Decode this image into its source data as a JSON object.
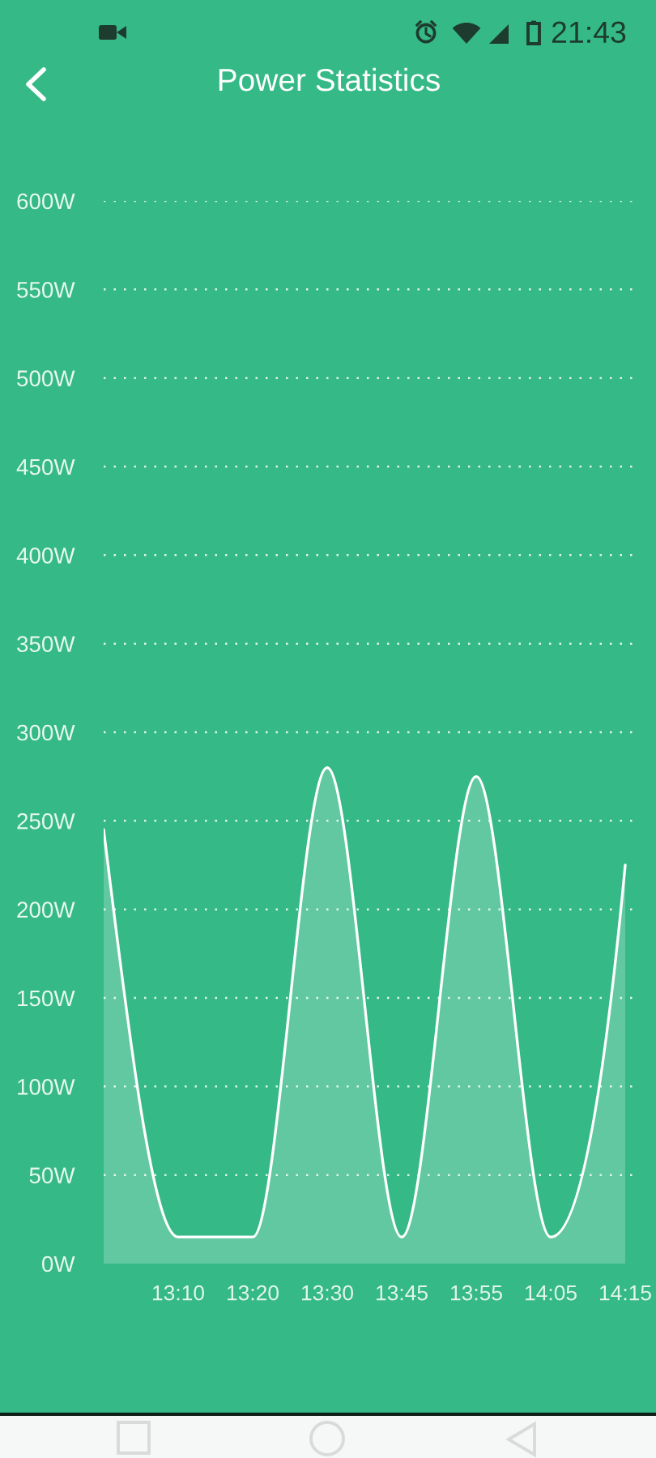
{
  "chart_data": {
    "type": "area",
    "title": "Power Statistics",
    "categories": [
      null,
      "13:10",
      "13:20",
      "13:30",
      "13:45",
      "13:55",
      "14:05",
      "14:15"
    ],
    "values": [
      245,
      15,
      15,
      280,
      15,
      275,
      15,
      225
    ],
    "color": "#ffffff",
    "ylim": [
      0,
      600
    ],
    "yticks": [
      {
        "value": 0,
        "label": "0W"
      },
      {
        "value": 50,
        "label": "50W"
      },
      {
        "value": 100,
        "label": "100W"
      },
      {
        "value": 150,
        "label": "150W"
      },
      {
        "value": 200,
        "label": "200W"
      },
      {
        "value": 250,
        "label": "250W"
      },
      {
        "value": 300,
        "label": "300W"
      },
      {
        "value": 350,
        "label": "350W"
      },
      {
        "value": 400,
        "label": "400W"
      },
      {
        "value": 450,
        "label": "450W"
      },
      {
        "value": 500,
        "label": "500W"
      },
      {
        "value": 550,
        "label": "550W"
      },
      {
        "value": 600,
        "label": "600W"
      }
    ],
    "grid": "y",
    "annotations": [
      "21:43"
    ]
  }
}
